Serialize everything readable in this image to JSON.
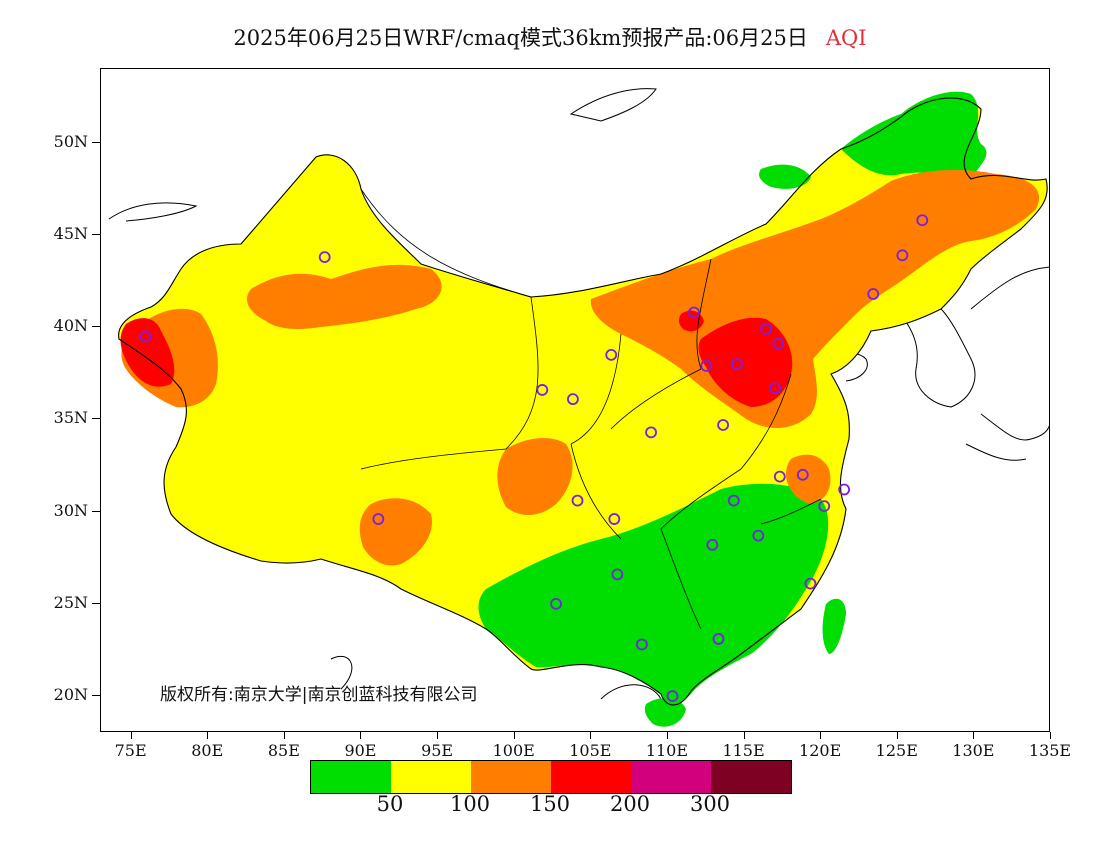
{
  "title": {
    "main": "2025年06月25日WRF/cmaq模式36km预报产品:06月25日",
    "tag": "AQI"
  },
  "axes": {
    "lat_labels": [
      "50N",
      "45N",
      "40N",
      "35N",
      "30N",
      "25N",
      "20N"
    ],
    "lon_labels": [
      "75E",
      "80E",
      "85E",
      "90E",
      "95E",
      "100E",
      "105E",
      "110E",
      "115E",
      "120E",
      "125E",
      "130E",
      "135E"
    ],
    "lon_range": [
      73,
      135
    ],
    "lat_range": [
      18,
      54
    ]
  },
  "copyright": "版权所有:南京大学|南京创蓝科技有限公司",
  "legend": {
    "colors": [
      "#00dd00",
      "#ffff00",
      "#ff7e00",
      "#ff0000",
      "#d2007d",
      "#7e0023"
    ],
    "thresholds": [
      "50",
      "100",
      "150",
      "200",
      "300"
    ]
  },
  "colors": {
    "good": "#00dd00",
    "moderate": "#ffff00",
    "sensitive": "#ff7e00",
    "unhealthy": "#ff0000",
    "very_unhealthy": "#d2007d",
    "hazardous": "#7e0023",
    "station": "#7a1fe6"
  },
  "stations": [
    {
      "lon": 87.6,
      "lat": 43.8
    },
    {
      "lon": 75.9,
      "lat": 39.5
    },
    {
      "lon": 91.1,
      "lat": 29.6
    },
    {
      "lon": 101.8,
      "lat": 36.6
    },
    {
      "lon": 103.8,
      "lat": 36.1
    },
    {
      "lon": 106.3,
      "lat": 38.5
    },
    {
      "lon": 111.7,
      "lat": 40.8
    },
    {
      "lon": 112.5,
      "lat": 37.9
    },
    {
      "lon": 114.5,
      "lat": 38.0
    },
    {
      "lon": 116.4,
      "lat": 39.9
    },
    {
      "lon": 117.2,
      "lat": 39.1
    },
    {
      "lon": 117.0,
      "lat": 36.7
    },
    {
      "lon": 113.6,
      "lat": 34.7
    },
    {
      "lon": 108.9,
      "lat": 34.3
    },
    {
      "lon": 104.1,
      "lat": 30.6
    },
    {
      "lon": 106.5,
      "lat": 29.6
    },
    {
      "lon": 106.7,
      "lat": 26.6
    },
    {
      "lon": 102.7,
      "lat": 25.0
    },
    {
      "lon": 108.3,
      "lat": 22.8
    },
    {
      "lon": 113.3,
      "lat": 23.1
    },
    {
      "lon": 110.3,
      "lat": 20.0
    },
    {
      "lon": 112.9,
      "lat": 28.2
    },
    {
      "lon": 114.3,
      "lat": 30.6
    },
    {
      "lon": 115.9,
      "lat": 28.7
    },
    {
      "lon": 117.3,
      "lat": 31.9
    },
    {
      "lon": 118.8,
      "lat": 32.0
    },
    {
      "lon": 120.2,
      "lat": 30.3
    },
    {
      "lon": 121.5,
      "lat": 31.2
    },
    {
      "lon": 119.3,
      "lat": 26.1
    },
    {
      "lon": 123.4,
      "lat": 41.8
    },
    {
      "lon": 125.3,
      "lat": 43.9
    },
    {
      "lon": 126.6,
      "lat": 45.8
    }
  ]
}
